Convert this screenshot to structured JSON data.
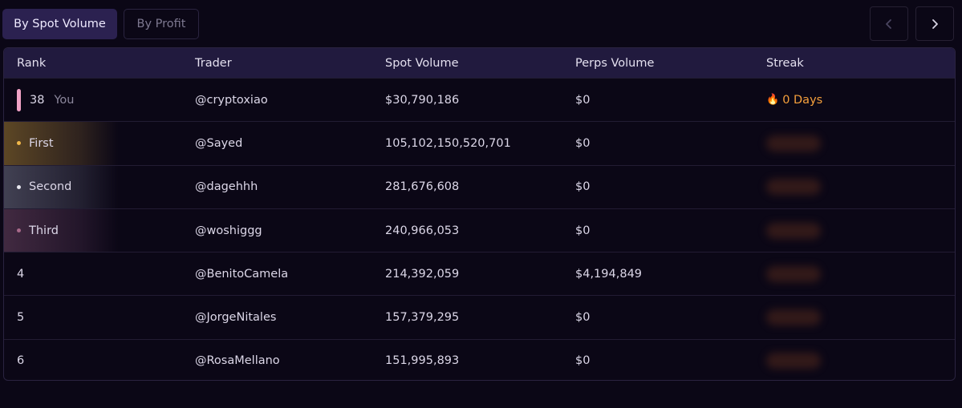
{
  "tabs": [
    {
      "label": "By Spot Volume",
      "active": true
    },
    {
      "label": "By Profit",
      "active": false
    }
  ],
  "pagination": {
    "prev_icon": "chevron-left-icon",
    "next_icon": "chevron-right-icon"
  },
  "columns": {
    "rank": "Rank",
    "trader": "Trader",
    "spot": "Spot Volume",
    "perps": "Perps Volume",
    "streak": "Streak"
  },
  "you_row": {
    "rank": "38",
    "you_label": "You",
    "trader": "@cryptoxiao",
    "spot": "$30,790,186",
    "perps": "$0",
    "streak": "0 Days",
    "streak_icon": "flame-icon"
  },
  "rows": [
    {
      "rank": "First",
      "trader": "@Sayed",
      "spot": "105,102,150,520,701",
      "perps": "$0"
    },
    {
      "rank": "Second",
      "trader": "@dagehhh",
      "spot": "281,676,608",
      "perps": "$0"
    },
    {
      "rank": "Third",
      "trader": "@woshiggg",
      "spot": "240,966,053",
      "perps": "$0"
    },
    {
      "rank": "4",
      "trader": "@BenitoCamela",
      "spot": "214,392,059",
      "perps": "$4,194,849"
    },
    {
      "rank": "5",
      "trader": "@JorgeNitales",
      "spot": "157,379,295",
      "perps": "$0"
    },
    {
      "rank": "6",
      "trader": "@RosaMellano",
      "spot": "151,995,893",
      "perps": "$0"
    }
  ],
  "colors": {
    "gold_dot": "#f0b84a",
    "silver_dot": "#e8e8f0",
    "bronze_dot": "#a86a8a",
    "accent": "#2b2150"
  }
}
